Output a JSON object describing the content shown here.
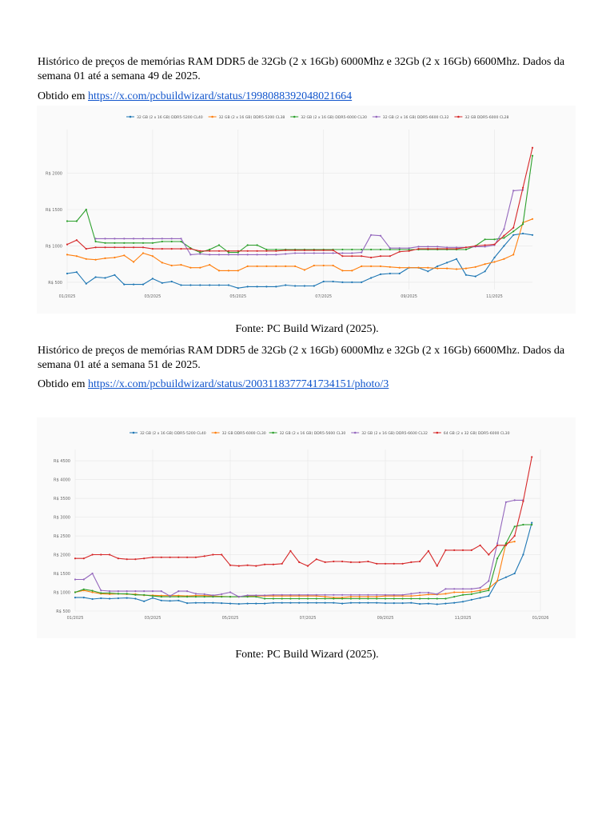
{
  "sections": [
    {
      "description": "Histórico de preços de memórias RAM DDR5 de 32Gb (2 x 16Gb) 6000Mhz e 32Gb (2 x 16Gb) 6600Mhz. Dados da semana 01 até a semana 49 de 2025.",
      "obtained_prefix": "Obtido em ",
      "link_text": "https://x.com/pcbuildwizard/status/1998088392048021664",
      "caption": "Fonte: PC Build Wizard (2025)."
    },
    {
      "description": "Histórico de preços de memórias RAM DDR5 de 32Gb (2 x 16Gb) 6000Mhz e 32Gb (2 x 16Gb) 6600Mhz. Dados da semana 01 até a semana 51 de 2025.",
      "obtained_prefix": "Obtido em ",
      "link_text": "https://x.com/pcbuildwizard/status/2003118377741734151/photo/3",
      "caption": "Fonte: PC Build Wizard (2025)."
    }
  ],
  "chart_data": [
    {
      "type": "line",
      "title": "",
      "xlabel": "",
      "ylabel": "",
      "xlim": [
        0,
        49
      ],
      "ylim": [
        400,
        2600
      ],
      "grid": true,
      "legend_position": "top",
      "x_ticks": [
        {
          "label": "01/2025",
          "x": 0
        },
        {
          "label": "03/2025",
          "x": 9
        },
        {
          "label": "05/2025",
          "x": 18
        },
        {
          "label": "07/2025",
          "x": 27
        },
        {
          "label": "09/2025",
          "x": 36
        },
        {
          "label": "11/2025",
          "x": 45
        }
      ],
      "y_ticks": [
        {
          "label": "R$ 500",
          "y": 500
        },
        {
          "label": "R$ 1000",
          "y": 1000
        },
        {
          "label": "R$ 1500",
          "y": 1500
        },
        {
          "label": "R$ 2000",
          "y": 2000
        }
      ],
      "series": [
        {
          "name": "32 GB (2 x 16 GB) DDR5-5200 CL40",
          "color": "#1f77b4",
          "values": [
            620,
            640,
            480,
            570,
            560,
            600,
            470,
            470,
            470,
            550,
            490,
            510,
            460,
            460,
            460,
            460,
            460,
            460,
            420,
            440,
            440,
            440,
            440,
            460,
            450,
            450,
            450,
            510,
            510,
            500,
            500,
            500,
            560,
            610,
            620,
            620,
            700,
            700,
            650,
            720,
            770,
            820,
            600,
            580,
            650,
            840,
            1000,
            1150,
            1170,
            1150
          ]
        },
        {
          "name": "32 GB (2 x 16 GB) DDR5-5200 CL38",
          "color": "#ff7f0e",
          "values": [
            880,
            860,
            820,
            810,
            830,
            840,
            870,
            780,
            900,
            860,
            770,
            730,
            740,
            700,
            700,
            740,
            660,
            660,
            660,
            720,
            720,
            720,
            720,
            720,
            720,
            670,
            730,
            730,
            730,
            660,
            660,
            720,
            720,
            720,
            710,
            700,
            700,
            700,
            700,
            690,
            690,
            680,
            690,
            710,
            750,
            780,
            820,
            880,
            1320,
            1370
          ]
        },
        {
          "name": "32 GB (2 x 16 GB) DDR5-6000 CL30",
          "color": "#2ca02c",
          "values": [
            1340,
            1340,
            1500,
            1060,
            1040,
            1040,
            1040,
            1040,
            1040,
            1040,
            1060,
            1060,
            1060,
            970,
            910,
            950,
            1010,
            910,
            910,
            1010,
            1010,
            950,
            950,
            950,
            950,
            950,
            950,
            950,
            950,
            950,
            950,
            950,
            950,
            950,
            950,
            950,
            950,
            950,
            950,
            950,
            950,
            950,
            950,
            1000,
            1090,
            1090,
            1110,
            1200,
            1300,
            2240
          ]
        },
        {
          "name": "32 GB (2 x 16 GB) DDR5-6600 CL32",
          "color": "#9467bd",
          "values": [
            null,
            null,
            null,
            1100,
            1100,
            1100,
            1100,
            1100,
            1100,
            1100,
            1100,
            1100,
            1100,
            880,
            890,
            880,
            880,
            880,
            880,
            880,
            880,
            880,
            880,
            890,
            900,
            900,
            900,
            900,
            900,
            900,
            900,
            910,
            1150,
            1140,
            970,
            970,
            970,
            990,
            990,
            990,
            980,
            980,
            980,
            990,
            990,
            1010,
            1230,
            1760,
            1770,
            null
          ]
        },
        {
          "name": "32 GB DDR5-6000 CL28",
          "color": "#d62728",
          "values": [
            1020,
            1080,
            960,
            980,
            980,
            980,
            980,
            980,
            980,
            960,
            960,
            960,
            960,
            960,
            930,
            930,
            930,
            930,
            930,
            930,
            930,
            930,
            930,
            940,
            940,
            940,
            940,
            940,
            940,
            860,
            860,
            860,
            840,
            860,
            860,
            920,
            930,
            960,
            960,
            960,
            960,
            960,
            980,
            1000,
            1010,
            1020,
            1140,
            1250,
            1800,
            2350
          ]
        }
      ]
    },
    {
      "type": "line",
      "title": "",
      "xlabel": "",
      "ylabel": "",
      "xlim": [
        0,
        54
      ],
      "ylim": [
        500,
        4800
      ],
      "grid": true,
      "legend_position": "top",
      "x_ticks": [
        {
          "label": "01/2025",
          "x": 0
        },
        {
          "label": "03/2025",
          "x": 9
        },
        {
          "label": "05/2025",
          "x": 18
        },
        {
          "label": "07/2025",
          "x": 27
        },
        {
          "label": "09/2025",
          "x": 36
        },
        {
          "label": "11/2025",
          "x": 45
        },
        {
          "label": "01/2026",
          "x": 54
        }
      ],
      "y_ticks": [
        {
          "label": "R$ 500",
          "y": 500
        },
        {
          "label": "R$ 1000",
          "y": 1000
        },
        {
          "label": "R$ 1500",
          "y": 1500
        },
        {
          "label": "R$ 2000",
          "y": 2000
        },
        {
          "label": "R$ 2500",
          "y": 2500
        },
        {
          "label": "R$ 3000",
          "y": 3000
        },
        {
          "label": "R$ 3500",
          "y": 3500
        },
        {
          "label": "R$ 4000",
          "y": 4000
        },
        {
          "label": "R$ 4500",
          "y": 4500
        }
      ],
      "series": [
        {
          "name": "32 GB (2 x 16 GB) DDR5-5200 CL40",
          "color": "#1f77b4",
          "values": [
            860,
            860,
            820,
            840,
            830,
            840,
            850,
            830,
            760,
            850,
            780,
            770,
            780,
            710,
            720,
            720,
            720,
            710,
            700,
            690,
            700,
            700,
            700,
            720,
            720,
            720,
            720,
            720,
            720,
            720,
            720,
            700,
            720,
            720,
            720,
            720,
            710,
            710,
            710,
            720,
            690,
            700,
            680,
            700,
            720,
            750,
            800,
            850,
            900,
            1300,
            1400,
            1500,
            2000,
            2850
          ]
        },
        {
          "name": "32 GB DDR5-6000 CL30",
          "color": "#ff7f0e",
          "values": [
            1000,
            1050,
            1000,
            960,
            950,
            960,
            950,
            950,
            920,
            920,
            910,
            910,
            910,
            900,
            910,
            910,
            900,
            890,
            880,
            880,
            900,
            900,
            900,
            900,
            900,
            900,
            900,
            900,
            900,
            880,
            860,
            860,
            880,
            880,
            880,
            880,
            900,
            900,
            900,
            900,
            920,
            940,
            940,
            960,
            1000,
            1000,
            1010,
            1050,
            1100,
            1300,
            2300,
            2350,
            null,
            null
          ]
        },
        {
          "name": "32 GB (2 x 16 GB) DDR5-5600 CL30",
          "color": "#2ca02c",
          "values": [
            1000,
            1080,
            1040,
            980,
            980,
            960,
            960,
            930,
            930,
            900,
            880,
            880,
            880,
            880,
            880,
            880,
            880,
            880,
            880,
            880,
            880,
            880,
            830,
            830,
            830,
            830,
            830,
            830,
            830,
            830,
            830,
            830,
            830,
            830,
            830,
            830,
            830,
            830,
            830,
            830,
            830,
            830,
            830,
            830,
            880,
            930,
            950,
            1000,
            1050,
            1900,
            2300,
            2750,
            2800,
            2800
          ]
        },
        {
          "name": "32 GB (2 x 16 GB) DDR5-6600 CL32",
          "color": "#9467bd",
          "values": [
            1340,
            1340,
            1500,
            1050,
            1030,
            1030,
            1030,
            1030,
            1030,
            1030,
            1030,
            900,
            1030,
            1030,
            960,
            950,
            920,
            950,
            1000,
            880,
            920,
            920,
            920,
            930,
            930,
            930,
            930,
            930,
            930,
            930,
            930,
            930,
            930,
            930,
            930,
            930,
            930,
            930,
            930,
            960,
            990,
            990,
            950,
            1090,
            1090,
            1090,
            1090,
            1120,
            1300,
            2300,
            3400,
            3450,
            3450,
            null
          ]
        },
        {
          "name": "64 GB (2 x 32 GB) DDR5-6000 CL30",
          "color": "#d62728",
          "values": [
            1900,
            1900,
            2000,
            2000,
            2000,
            1900,
            1880,
            1880,
            1900,
            1930,
            1930,
            1930,
            1930,
            1930,
            1930,
            1960,
            2000,
            2000,
            1720,
            1700,
            1720,
            1700,
            1740,
            1740,
            1760,
            2100,
            1800,
            1700,
            1880,
            1800,
            1820,
            1820,
            1800,
            1800,
            1820,
            1760,
            1760,
            1760,
            1760,
            1800,
            1820,
            2100,
            1700,
            2120,
            2120,
            2120,
            2120,
            2250,
            2000,
            2250,
            2250,
            2500,
            3420,
            4600
          ]
        }
      ]
    }
  ]
}
